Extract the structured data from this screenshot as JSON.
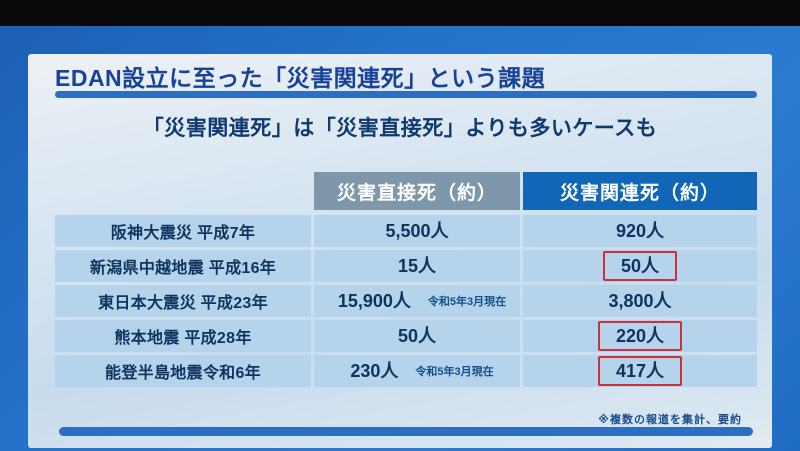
{
  "slide": {
    "title": "EDAN設立に至った「災害関連死」という課題",
    "heading": "「災害関連死」は「災害直接死」よりも多いケースも",
    "footnote": "※複数の報道を集計、要約"
  },
  "table": {
    "columns": [
      {
        "label": ""
      },
      {
        "label": "災害直接死（約）"
      },
      {
        "label": "災害関連死（約）"
      }
    ],
    "rows": [
      {
        "event": "阪神大震災 平成7年",
        "direct": "5,500人",
        "direct_note": "",
        "related": "920人",
        "related_boxed": false
      },
      {
        "event": "新潟県中越地震 平成16年",
        "direct": "15人",
        "direct_note": "",
        "related": "50人",
        "related_boxed": true
      },
      {
        "event": "東日本大震災 平成23年",
        "direct": "15,900人",
        "direct_note": "令和5年3月現在",
        "related": "3,800人",
        "related_boxed": false
      },
      {
        "event": "熊本地震 平成28年",
        "direct": "50人",
        "direct_note": "",
        "related": "220人",
        "related_boxed": true
      },
      {
        "event": "能登半島地震令和6年",
        "direct": "230人",
        "direct_note": "令和5年3月現在",
        "related": "417人",
        "related_boxed": true
      }
    ]
  },
  "colors": {
    "slide_background": "#2472ca",
    "panel_background": "#d7e5f1",
    "title_text": "#18419a",
    "rule": "#2b6ec2",
    "header_direct": "#7e97aa",
    "header_related": "#1166b8",
    "row_background": "#b5d3eb",
    "cell_text": "#0e3560",
    "highlight_box": "#c9303c"
  }
}
